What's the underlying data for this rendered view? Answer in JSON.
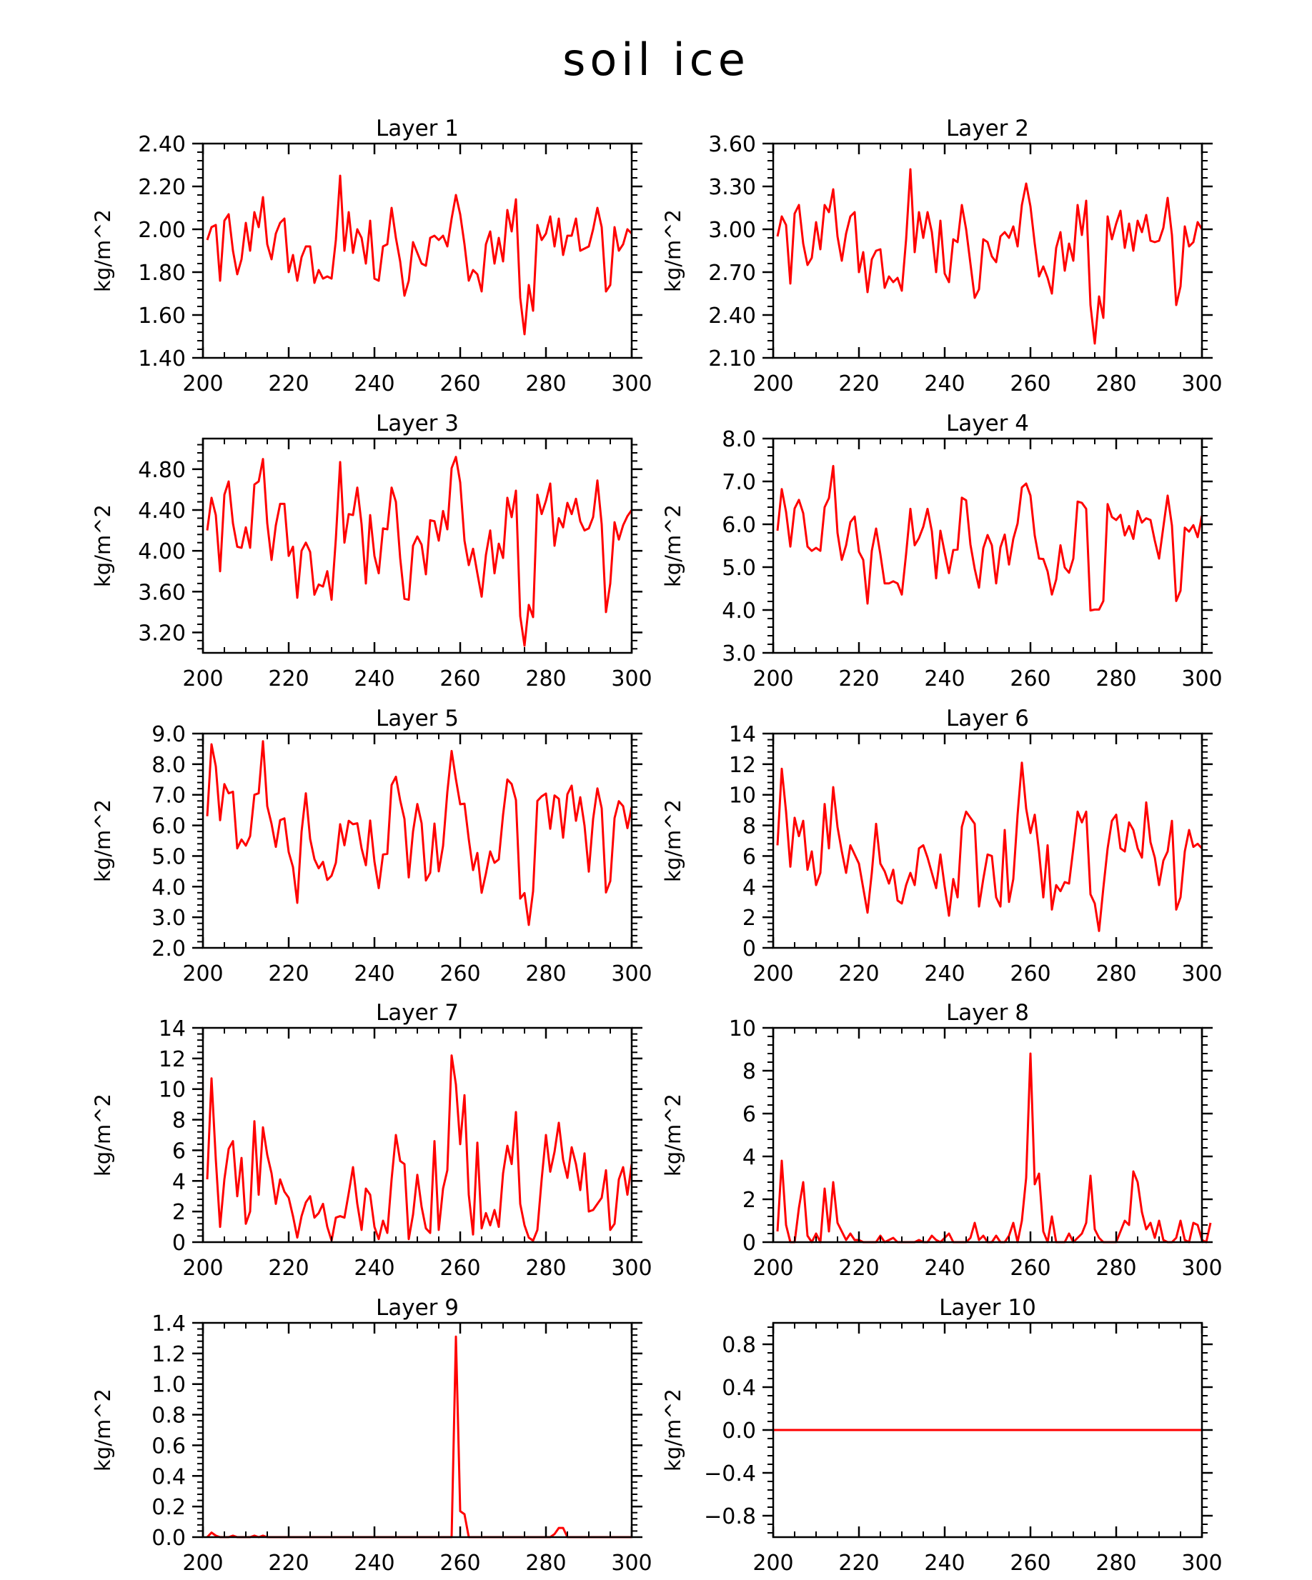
{
  "figure": {
    "title": "soil ice"
  },
  "chart_data": [
    {
      "type": "line",
      "title": "Layer 1",
      "ylabel": "kg/m^2",
      "xlim": [
        200,
        300
      ],
      "ylim": [
        1.4,
        2.4
      ],
      "xticks": [
        200,
        220,
        240,
        260,
        280,
        300
      ],
      "yticks": [
        1.4,
        1.6,
        1.8,
        2.0,
        2.2,
        2.4
      ],
      "ytick_decimals": 2,
      "color": "#ff0000",
      "x_start": 201,
      "x_step": 1,
      "values": [
        1.95,
        2.01,
        2.02,
        1.76,
        2.04,
        2.07,
        1.9,
        1.79,
        1.86,
        2.03,
        1.9,
        2.08,
        2.01,
        2.15,
        1.93,
        1.86,
        1.98,
        2.03,
        2.05,
        1.8,
        1.88,
        1.76,
        1.87,
        1.92,
        1.92,
        1.75,
        1.81,
        1.77,
        1.78,
        1.77,
        1.95,
        2.25,
        1.9,
        2.08,
        1.89,
        2.0,
        1.96,
        1.84,
        2.04,
        1.77,
        1.76,
        1.92,
        1.93,
        2.1,
        1.96,
        1.85,
        1.69,
        1.76,
        1.94,
        1.89,
        1.84,
        1.83,
        1.96,
        1.97,
        1.95,
        1.97,
        1.92,
        2.05,
        2.16,
        2.07,
        1.93,
        1.76,
        1.81,
        1.79,
        1.71,
        1.93,
        1.99,
        1.84,
        1.96,
        1.85,
        2.09,
        1.99,
        2.14,
        1.68,
        1.51,
        1.74,
        1.62,
        2.02,
        1.95,
        1.98,
        2.06,
        1.92,
        2.05,
        1.88,
        1.97,
        1.97,
        2.05,
        1.9,
        1.91,
        1.92,
        2.0,
        2.1,
        2.01,
        1.71,
        1.74,
        2.01,
        1.9,
        1.93,
        2.0,
        1.98
      ]
    },
    {
      "type": "line",
      "title": "Layer 2",
      "ylabel": "kg/m^2",
      "xlim": [
        200,
        300
      ],
      "ylim": [
        2.1,
        3.6
      ],
      "xticks": [
        200,
        220,
        240,
        260,
        280,
        300
      ],
      "yticks": [
        2.1,
        2.4,
        2.7,
        3.0,
        3.3,
        3.6
      ],
      "ytick_decimals": 2,
      "color": "#ff0000",
      "x_start": 201,
      "x_step": 1,
      "values": [
        2.95,
        3.09,
        3.03,
        2.62,
        3.11,
        3.17,
        2.9,
        2.75,
        2.8,
        3.05,
        2.86,
        3.17,
        3.12,
        3.28,
        2.95,
        2.78,
        2.97,
        3.09,
        3.12,
        2.7,
        2.84,
        2.56,
        2.79,
        2.85,
        2.86,
        2.59,
        2.67,
        2.63,
        2.66,
        2.57,
        2.93,
        3.42,
        2.84,
        3.12,
        2.94,
        3.12,
        2.98,
        2.7,
        3.06,
        2.69,
        2.63,
        2.93,
        2.91,
        3.17,
        3.0,
        2.76,
        2.52,
        2.58,
        2.93,
        2.91,
        2.81,
        2.77,
        2.95,
        2.98,
        2.94,
        3.02,
        2.88,
        3.17,
        3.32,
        3.16,
        2.9,
        2.67,
        2.74,
        2.66,
        2.55,
        2.87,
        2.98,
        2.71,
        2.9,
        2.78,
        3.17,
        2.96,
        3.2,
        2.47,
        2.2,
        2.53,
        2.38,
        3.09,
        2.93,
        3.04,
        3.13,
        2.87,
        3.04,
        2.85,
        3.06,
        2.98,
        3.1,
        2.92,
        2.91,
        2.92,
        3.01,
        3.22,
        2.96,
        2.47,
        2.6,
        3.02,
        2.88,
        2.91,
        3.05,
        3.0
      ]
    },
    {
      "type": "line",
      "title": "Layer 3",
      "ylabel": "kg/m^2",
      "xlim": [
        200,
        300
      ],
      "ylim": [
        3.0,
        5.1
      ],
      "xticks": [
        200,
        220,
        240,
        260,
        280,
        300
      ],
      "yticks": [
        3.2,
        3.6,
        4.0,
        4.4,
        4.8
      ],
      "ytick_decimals": 2,
      "color": "#ff0000",
      "x_start": 201,
      "x_step": 1,
      "values": [
        4.2,
        4.52,
        4.35,
        3.8,
        4.55,
        4.68,
        4.27,
        4.04,
        4.03,
        4.23,
        4.03,
        4.65,
        4.68,
        4.9,
        4.27,
        3.91,
        4.25,
        4.46,
        4.46,
        3.95,
        4.04,
        3.54,
        4.0,
        4.08,
        3.99,
        3.57,
        3.67,
        3.65,
        3.8,
        3.52,
        4.12,
        4.87,
        4.08,
        4.36,
        4.35,
        4.62,
        4.26,
        3.68,
        4.35,
        3.95,
        3.78,
        4.22,
        4.21,
        4.62,
        4.48,
        3.93,
        3.53,
        3.52,
        4.05,
        4.14,
        4.06,
        3.77,
        4.3,
        4.29,
        4.1,
        4.39,
        4.21,
        4.81,
        4.92,
        4.67,
        4.1,
        3.86,
        4.02,
        3.78,
        3.55,
        3.96,
        4.2,
        3.78,
        4.07,
        3.93,
        4.52,
        4.33,
        4.59,
        3.36,
        3.07,
        3.47,
        3.35,
        4.55,
        4.36,
        4.49,
        4.66,
        4.05,
        4.32,
        4.23,
        4.47,
        4.36,
        4.51,
        4.29,
        4.2,
        4.22,
        4.33,
        4.69,
        4.26,
        3.4,
        3.68,
        4.28,
        4.11,
        4.25,
        4.34,
        4.4
      ]
    },
    {
      "type": "line",
      "title": "Layer 4",
      "ylabel": "kg/m^2",
      "xlim": [
        200,
        300
      ],
      "ylim": [
        3.0,
        8.0
      ],
      "xticks": [
        200,
        220,
        240,
        260,
        280,
        300
      ],
      "yticks": [
        3.0,
        4.0,
        5.0,
        6.0,
        7.0,
        8.0
      ],
      "ytick_decimals": 1,
      "color": "#ff0000",
      "x_start": 201,
      "x_step": 1,
      "values": [
        5.85,
        6.82,
        6.29,
        5.48,
        6.37,
        6.57,
        6.26,
        5.48,
        5.38,
        5.45,
        5.38,
        6.4,
        6.61,
        7.36,
        5.8,
        5.17,
        5.51,
        6.05,
        6.18,
        5.36,
        5.17,
        4.15,
        5.38,
        5.9,
        5.3,
        4.62,
        4.62,
        4.67,
        4.62,
        4.36,
        5.31,
        6.36,
        5.51,
        5.68,
        5.94,
        6.36,
        5.84,
        4.74,
        5.85,
        5.34,
        4.86,
        5.4,
        5.41,
        6.62,
        6.56,
        5.53,
        4.96,
        4.52,
        5.44,
        5.75,
        5.51,
        4.62,
        5.46,
        5.76,
        5.06,
        5.66,
        6.02,
        6.86,
        6.95,
        6.67,
        5.74,
        5.2,
        5.19,
        4.9,
        4.36,
        4.71,
        5.51,
        4.99,
        4.87,
        5.2,
        6.53,
        6.5,
        6.36,
        3.99,
        4.01,
        4.01,
        4.21,
        6.47,
        6.17,
        6.1,
        6.22,
        5.74,
        5.96,
        5.66,
        6.31,
        6.04,
        6.14,
        6.1,
        5.62,
        5.2,
        5.94,
        6.67,
        5.97,
        4.21,
        4.45,
        5.92,
        5.83,
        5.98,
        5.7,
        6.2
      ]
    },
    {
      "type": "line",
      "title": "Layer 5",
      "ylabel": "kg/m^2",
      "xlim": [
        200,
        300
      ],
      "ylim": [
        2.0,
        9.0
      ],
      "xticks": [
        200,
        220,
        240,
        260,
        280,
        300
      ],
      "yticks": [
        2.0,
        3.0,
        4.0,
        5.0,
        6.0,
        7.0,
        8.0,
        9.0
      ],
      "ytick_decimals": 1,
      "color": "#ff0000",
      "x_start": 201,
      "x_step": 1,
      "values": [
        6.3,
        8.65,
        7.93,
        6.17,
        7.35,
        7.05,
        7.1,
        5.25,
        5.54,
        5.34,
        5.65,
        7.0,
        7.05,
        8.75,
        6.63,
        6.05,
        5.3,
        6.17,
        6.23,
        5.13,
        4.64,
        3.47,
        5.79,
        7.05,
        5.56,
        4.9,
        4.6,
        4.81,
        4.22,
        4.36,
        4.78,
        6.04,
        5.35,
        6.15,
        6.04,
        6.07,
        5.25,
        4.7,
        6.16,
        4.82,
        3.95,
        5.05,
        5.07,
        7.32,
        7.59,
        6.82,
        6.21,
        4.3,
        5.8,
        6.7,
        6.07,
        4.2,
        4.45,
        6.06,
        4.5,
        5.33,
        7.09,
        8.43,
        7.51,
        6.69,
        6.71,
        5.55,
        4.54,
        5.1,
        3.8,
        4.43,
        5.15,
        4.78,
        4.89,
        6.35,
        7.5,
        7.35,
        6.83,
        3.61,
        3.79,
        2.75,
        3.85,
        6.8,
        6.95,
        7.04,
        5.89,
        6.98,
        6.87,
        5.6,
        7.02,
        7.3,
        6.15,
        6.92,
        5.99,
        4.49,
        6.21,
        7.21,
        6.56,
        3.81,
        4.18,
        6.24,
        6.79,
        6.63,
        5.91,
        6.6
      ]
    },
    {
      "type": "line",
      "title": "Layer 6",
      "ylabel": "kg/m^2",
      "xlim": [
        200,
        300
      ],
      "ylim": [
        0,
        14
      ],
      "xticks": [
        200,
        220,
        240,
        260,
        280,
        300
      ],
      "yticks": [
        0,
        2,
        4,
        6,
        8,
        10,
        12,
        14
      ],
      "ytick_decimals": 0,
      "color": "#ff0000",
      "x_start": 201,
      "x_step": 1,
      "values": [
        6.7,
        11.7,
        8.9,
        5.3,
        8.5,
        7.3,
        8.3,
        5.1,
        6.3,
        4.1,
        4.9,
        9.4,
        6.5,
        10.5,
        7.9,
        6.3,
        4.9,
        6.7,
        6.1,
        5.5,
        3.9,
        2.3,
        4.9,
        8.1,
        5.5,
        5.0,
        4.2,
        5.1,
        3.1,
        2.9,
        4.1,
        4.9,
        4.1,
        6.5,
        6.7,
        5.9,
        4.9,
        3.9,
        6.1,
        4.0,
        2.1,
        4.5,
        3.3,
        7.9,
        8.9,
        8.5,
        8.1,
        2.7,
        4.5,
        6.1,
        6.0,
        3.3,
        2.7,
        7.7,
        3.0,
        4.5,
        8.7,
        12.1,
        9.1,
        7.5,
        8.7,
        6.3,
        3.3,
        6.7,
        2.5,
        4.1,
        3.7,
        4.3,
        4.2,
        6.5,
        8.9,
        8.2,
        8.9,
        3.5,
        2.9,
        1.1,
        3.9,
        6.5,
        8.3,
        8.7,
        6.5,
        6.3,
        8.2,
        7.7,
        6.5,
        5.9,
        9.5,
        6.9,
        5.9,
        4.1,
        5.7,
        6.3,
        8.3,
        2.5,
        3.3,
        6.3,
        7.7,
        6.6,
        6.8,
        6.5
      ]
    },
    {
      "type": "line",
      "title": "Layer 7",
      "ylabel": "kg/m^2",
      "xlim": [
        200,
        300
      ],
      "ylim": [
        0,
        14
      ],
      "xticks": [
        200,
        220,
        240,
        260,
        280,
        300
      ],
      "yticks": [
        0,
        2,
        4,
        6,
        8,
        10,
        12,
        14
      ],
      "ytick_decimals": 0,
      "color": "#ff0000",
      "x_start": 201,
      "x_step": 1,
      "values": [
        4.1,
        10.7,
        5.4,
        1.0,
        4.1,
        6.1,
        6.6,
        3.0,
        5.5,
        1.2,
        2.0,
        7.9,
        3.1,
        7.5,
        5.7,
        4.5,
        2.5,
        4.1,
        3.3,
        2.9,
        1.7,
        0.3,
        1.7,
        2.6,
        3.0,
        1.6,
        1.9,
        2.5,
        1.0,
        0.1,
        1.6,
        1.7,
        1.6,
        3.2,
        4.9,
        2.5,
        0.8,
        3.5,
        3.1,
        1.0,
        0.2,
        1.4,
        0.6,
        4.1,
        7.0,
        5.3,
        5.1,
        0.2,
        1.8,
        4.4,
        2.3,
        0.9,
        0.6,
        6.6,
        0.8,
        3.5,
        4.7,
        12.2,
        10.3,
        6.4,
        9.6,
        3.1,
        0.5,
        6.5,
        0.9,
        1.9,
        1.1,
        2.1,
        1.0,
        4.5,
        6.3,
        5.1,
        8.5,
        2.5,
        1.1,
        0.3,
        0.1,
        0.8,
        4.1,
        7.0,
        4.6,
        5.9,
        7.8,
        5.4,
        4.2,
        6.2,
        5.1,
        3.4,
        5.8,
        2.0,
        2.1,
        2.5,
        2.9,
        4.7,
        0.8,
        1.2,
        4.1,
        4.9,
        3.1,
        5.1
      ]
    },
    {
      "type": "line",
      "title": "Layer 8",
      "ylabel": "kg/m^2",
      "xlim": [
        200,
        300
      ],
      "ylim": [
        0,
        10
      ],
      "xticks": [
        200,
        220,
        240,
        260,
        280,
        300
      ],
      "yticks": [
        0,
        2,
        4,
        6,
        8,
        10
      ],
      "ytick_decimals": 0,
      "color": "#ff0000",
      "x_start": 201,
      "x_step": 1,
      "values": [
        0.5,
        3.8,
        0.8,
        0.0,
        0.0,
        1.6,
        2.8,
        0.3,
        0.0,
        0.4,
        0.0,
        2.5,
        0.5,
        2.8,
        0.9,
        0.5,
        0.1,
        0.4,
        0.1,
        0.1,
        0.0,
        0.0,
        0.0,
        0.0,
        0.3,
        0.0,
        0.1,
        0.2,
        0.0,
        0.0,
        0.0,
        0.0,
        0.0,
        0.1,
        0.0,
        0.0,
        0.3,
        0.1,
        0.0,
        0.2,
        0.4,
        0.0,
        0.0,
        0.0,
        0.0,
        0.2,
        0.9,
        0.1,
        0.3,
        0.0,
        0.0,
        0.3,
        0.0,
        0.0,
        0.3,
        0.9,
        0.0,
        1.0,
        3.0,
        8.8,
        2.7,
        3.2,
        0.5,
        0.0,
        1.2,
        0.0,
        0.0,
        0.0,
        0.4,
        0.0,
        0.2,
        0.4,
        0.9,
        3.1,
        0.6,
        0.2,
        0.0,
        0.0,
        0.0,
        0.0,
        0.5,
        1.0,
        0.8,
        3.3,
        2.8,
        1.4,
        0.6,
        0.9,
        0.2,
        1.0,
        0.1,
        0.0,
        0.0,
        0.2,
        1.0,
        0.1,
        0.0,
        0.9,
        0.8,
        0.1,
        0.0,
        0.9
      ]
    },
    {
      "type": "line",
      "title": "Layer 9",
      "ylabel": "kg/m^2",
      "xlim": [
        200,
        300
      ],
      "ylim": [
        0,
        1.4
      ],
      "xticks": [
        200,
        220,
        240,
        260,
        280,
        300
      ],
      "yticks": [
        0.0,
        0.2,
        0.4,
        0.6,
        0.8,
        1.0,
        1.2,
        1.4
      ],
      "ytick_decimals": 1,
      "color": "#ff0000",
      "x_start": 201,
      "x_step": 1,
      "values": [
        0.0,
        0.03,
        0.01,
        0.0,
        0.0,
        0.0,
        0.01,
        0.0,
        0.0,
        0.0,
        0.0,
        0.01,
        0.0,
        0.01,
        0.0,
        0.0,
        0.0,
        0.0,
        0.0,
        0.0,
        0.0,
        0.0,
        0.0,
        0.0,
        0.0,
        0.0,
        0.0,
        0.0,
        0.0,
        0.0,
        0.0,
        0.0,
        0.0,
        0.0,
        0.0,
        0.0,
        0.0,
        0.0,
        0.0,
        0.0,
        0.0,
        0.0,
        0.0,
        0.0,
        0.0,
        0.0,
        0.0,
        0.0,
        0.0,
        0.0,
        0.0,
        0.0,
        0.0,
        0.0,
        0.0,
        0.0,
        0.0,
        0.0,
        1.31,
        0.17,
        0.15,
        0.0,
        0.0,
        0.0,
        0.0,
        0.0,
        0.0,
        0.0,
        0.0,
        0.0,
        0.0,
        0.0,
        0.0,
        0.0,
        0.0,
        0.0,
        0.0,
        0.0,
        0.0,
        0.0,
        0.0,
        0.02,
        0.06,
        0.06,
        0.0,
        0.0,
        0.0,
        0.0,
        0.0,
        0.0,
        0.0,
        0.0,
        0.0,
        0.0,
        0.0,
        0.0,
        0.0,
        0.0,
        0.0,
        0.0
      ]
    },
    {
      "type": "line",
      "title": "Layer 10",
      "ylabel": "kg/m^2",
      "xlim": [
        200,
        300
      ],
      "ylim": [
        -1.0,
        1.0
      ],
      "xticks": [
        200,
        220,
        240,
        260,
        280,
        300
      ],
      "yticks": [
        -0.8,
        -0.4,
        0.0,
        0.4,
        0.8
      ],
      "ytick_decimals": 1,
      "color": "#ff0000",
      "x": [
        200,
        300
      ],
      "values": [
        0.0,
        0.0
      ]
    }
  ]
}
